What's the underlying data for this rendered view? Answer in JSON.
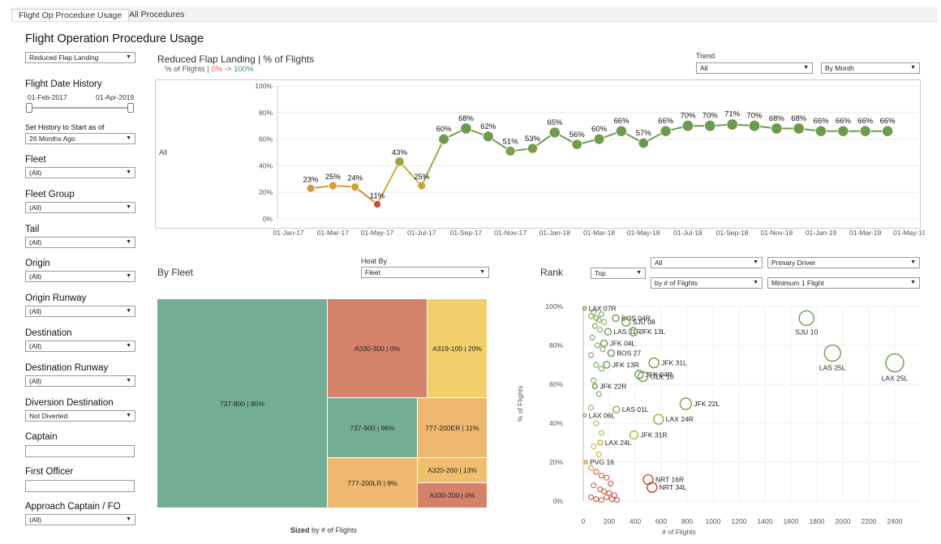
{
  "tabs": [
    "Flight Op Procedure Usage",
    "All Procedures"
  ],
  "page_title": "Flight Operation Procedure Usage",
  "procedure_select": "Reduced Flap Landing",
  "sidebar": {
    "date_history_label": "Flight Date History",
    "date_start": "01-Feb-2017",
    "date_end": "01-Apr-2019",
    "set_history_label": "Set History to Start as of",
    "set_history_value": "26 Months Ago",
    "filters": [
      {
        "label": "Fleet",
        "value": "(All)"
      },
      {
        "label": "Fleet Group",
        "value": "(All)"
      },
      {
        "label": "Tail",
        "value": "(All)"
      },
      {
        "label": "Origin",
        "value": "(All)"
      },
      {
        "label": "Origin Runway",
        "value": "(All)"
      },
      {
        "label": "Destination",
        "value": "(All)"
      },
      {
        "label": "Destination Runway",
        "value": "(All)"
      },
      {
        "label": "Diversion Destination",
        "value": "Not Diverted"
      },
      {
        "label": "Captain",
        "value": ""
      },
      {
        "label": "First Officer",
        "value": ""
      },
      {
        "label": "Approach Captain / FO",
        "value": "(All)"
      }
    ]
  },
  "trend": {
    "title": "Reduced Flap Landing | % of Flights",
    "legend_prefix": "% of Flights |",
    "legend_low": "0%",
    "legend_arrow": "->",
    "legend_high": "100%",
    "trend_label": "Trend",
    "trend_value": "All",
    "period_value": "By Month",
    "row_label": "All"
  },
  "fleet": {
    "title": "By Fleet",
    "heat_by_label": "Heat By",
    "heat_by_value": "Fleet",
    "sized_bold": "Sized",
    "sized_rest": "by # of Flights"
  },
  "rank": {
    "title": "Rank",
    "top_value": "Top",
    "all_value": "All",
    "primary_value": "Primary Driver",
    "by_value": "by # of Flights",
    "min_value": "Minimum 1 Flight"
  },
  "colors": {
    "green": "#6e9a4e",
    "yellow": "#c9b53a",
    "orange": "#e07a2a",
    "red": "#c74a34",
    "legend_low": "#e0613a",
    "legend_high": "#3a8a5a"
  },
  "chart_data": [
    {
      "type": "line",
      "title": "Reduced Flap Landing | % of Flights",
      "ylabel": "% of Flights",
      "ylim": [
        0,
        100
      ],
      "yticks": [
        "0%",
        "20%",
        "40%",
        "60%",
        "80%",
        "100%"
      ],
      "xticks": [
        "01-Jan-17",
        "01-Mar-17",
        "01-May-17",
        "01-Jul-17",
        "01-Sep-17",
        "01-Nov-17",
        "01-Jan-18",
        "01-Mar-18",
        "01-May-18",
        "01-Jul-18",
        "01-Sep-18",
        "01-Nov-18",
        "01-Jan-19",
        "01-Mar-19",
        "01-May-19"
      ],
      "x": [
        "Feb-17",
        "Mar-17",
        "Apr-17",
        "May-17",
        "Jun-17",
        "Jul-17",
        "Aug-17",
        "Sep-17",
        "Oct-17",
        "Nov-17",
        "Dec-17",
        "Jan-18",
        "Feb-18",
        "Mar-18",
        "Apr-18",
        "May-18",
        "Jun-18",
        "Jul-18",
        "Aug-18",
        "Sep-18",
        "Oct-18",
        "Nov-18",
        "Dec-18",
        "Jan-19",
        "Feb-19",
        "Mar-19",
        "Apr-19"
      ],
      "values": [
        23,
        25,
        24,
        11,
        43,
        25,
        60,
        68,
        62,
        51,
        53,
        65,
        56,
        60,
        66,
        57,
        66,
        70,
        70,
        71,
        70,
        68,
        68,
        66,
        66,
        66,
        66
      ],
      "labels": [
        "23%",
        "25%",
        "24%",
        "11%",
        "43%",
        "25%",
        "60%",
        "68%",
        "62%",
        "51%",
        "53%",
        "65%",
        "56%",
        "60%",
        "66%",
        "57%",
        "66%",
        "70%",
        "70%",
        "71%",
        "70%",
        "68%",
        "68%",
        "66%",
        "66%",
        "66%",
        "66%"
      ],
      "label_shown": [
        true,
        true,
        true,
        true,
        true,
        true,
        true,
        true,
        true,
        true,
        true,
        true,
        true,
        true,
        true,
        true,
        true,
        true,
        true,
        true,
        true,
        true,
        true,
        true,
        true,
        true,
        true
      ]
    },
    {
      "type": "treemap",
      "title": "By Fleet",
      "items": [
        {
          "name": "737-800 | 95%",
          "value": 95,
          "color": "#74ae96"
        },
        {
          "name": "A330-300 | 0%",
          "value": 0,
          "color": "#d4826a"
        },
        {
          "name": "A319-100 | 20%",
          "value": 20,
          "color": "#f2cf6a"
        },
        {
          "name": "737-900 | 96%",
          "value": 96,
          "color": "#74ae96"
        },
        {
          "name": "777-200ER | 11%",
          "value": 11,
          "color": "#edb770"
        },
        {
          "name": "777-200LR | 9%",
          "value": 9,
          "color": "#edb770"
        },
        {
          "name": "A320-200 | 13%",
          "value": 13,
          "color": "#f0bf6e"
        },
        {
          "name": "A330-200 | 0%",
          "value": 0,
          "color": "#d4826a"
        }
      ]
    },
    {
      "type": "scatter",
      "title": "Rank",
      "xlabel": "# of Flights",
      "ylabel": "% of Flights",
      "xlim": [
        0,
        2600
      ],
      "ylim": [
        0,
        100
      ],
      "xticks": [
        "0",
        "200",
        "400",
        "600",
        "800",
        "1000",
        "1200",
        "1400",
        "1600",
        "1800",
        "2000",
        "2200",
        "2400"
      ],
      "yticks": [
        "0%",
        "20%",
        "40%",
        "60%",
        "80%",
        "100%"
      ],
      "points": [
        {
          "label": "SJU 10",
          "x": 1720,
          "y": 94,
          "r": 9
        },
        {
          "label": "LAS 25L",
          "x": 1920,
          "y": 76,
          "r": 10
        },
        {
          "label": "LAX 25L",
          "x": 2400,
          "y": 71,
          "r": 11
        },
        {
          "label": "LAX 07R",
          "x": 10,
          "y": 99,
          "r": 2
        },
        {
          "label": "BOS 04R",
          "x": 250,
          "y": 94,
          "r": 4
        },
        {
          "label": "SJU 08",
          "x": 330,
          "y": 92,
          "r": 5
        },
        {
          "label": "LAS 01R",
          "x": 190,
          "y": 87,
          "r": 4
        },
        {
          "label": "JFK 13L",
          "x": 385,
          "y": 87,
          "r": 5
        },
        {
          "label": "JFK 04L",
          "x": 160,
          "y": 81,
          "r": 4
        },
        {
          "label": "BOS 27",
          "x": 215,
          "y": 76,
          "r": 4
        },
        {
          "label": "JFK 31L",
          "x": 545,
          "y": 71,
          "r": 6
        },
        {
          "label": "JFK 13R",
          "x": 180,
          "y": 70,
          "r": 4
        },
        {
          "label": "JFK 04R",
          "x": 430,
          "y": 65,
          "r": 5
        },
        {
          "label": "GDL 10",
          "x": 460,
          "y": 64,
          "r": 6
        },
        {
          "label": "JFK 22R",
          "x": 90,
          "y": 59,
          "r": 3
        },
        {
          "label": "JFK 22L",
          "x": 790,
          "y": 50,
          "r": 7
        },
        {
          "label": "LAS 01L",
          "x": 255,
          "y": 47,
          "r": 4
        },
        {
          "label": "LAX 06L",
          "x": 10,
          "y": 44,
          "r": 2
        },
        {
          "label": "LAX 24R",
          "x": 580,
          "y": 42,
          "r": 6
        },
        {
          "label": "JFK 31R",
          "x": 390,
          "y": 34,
          "r": 5
        },
        {
          "label": "LAX 24L",
          "x": 130,
          "y": 30,
          "r": 3
        },
        {
          "label": "PVG 16",
          "x": 20,
          "y": 20,
          "r": 2
        },
        {
          "label": "NRT 16R",
          "x": 500,
          "y": 11,
          "r": 6
        },
        {
          "label": "NRT 34L",
          "x": 530,
          "y": 7,
          "r": 6
        }
      ]
    }
  ]
}
